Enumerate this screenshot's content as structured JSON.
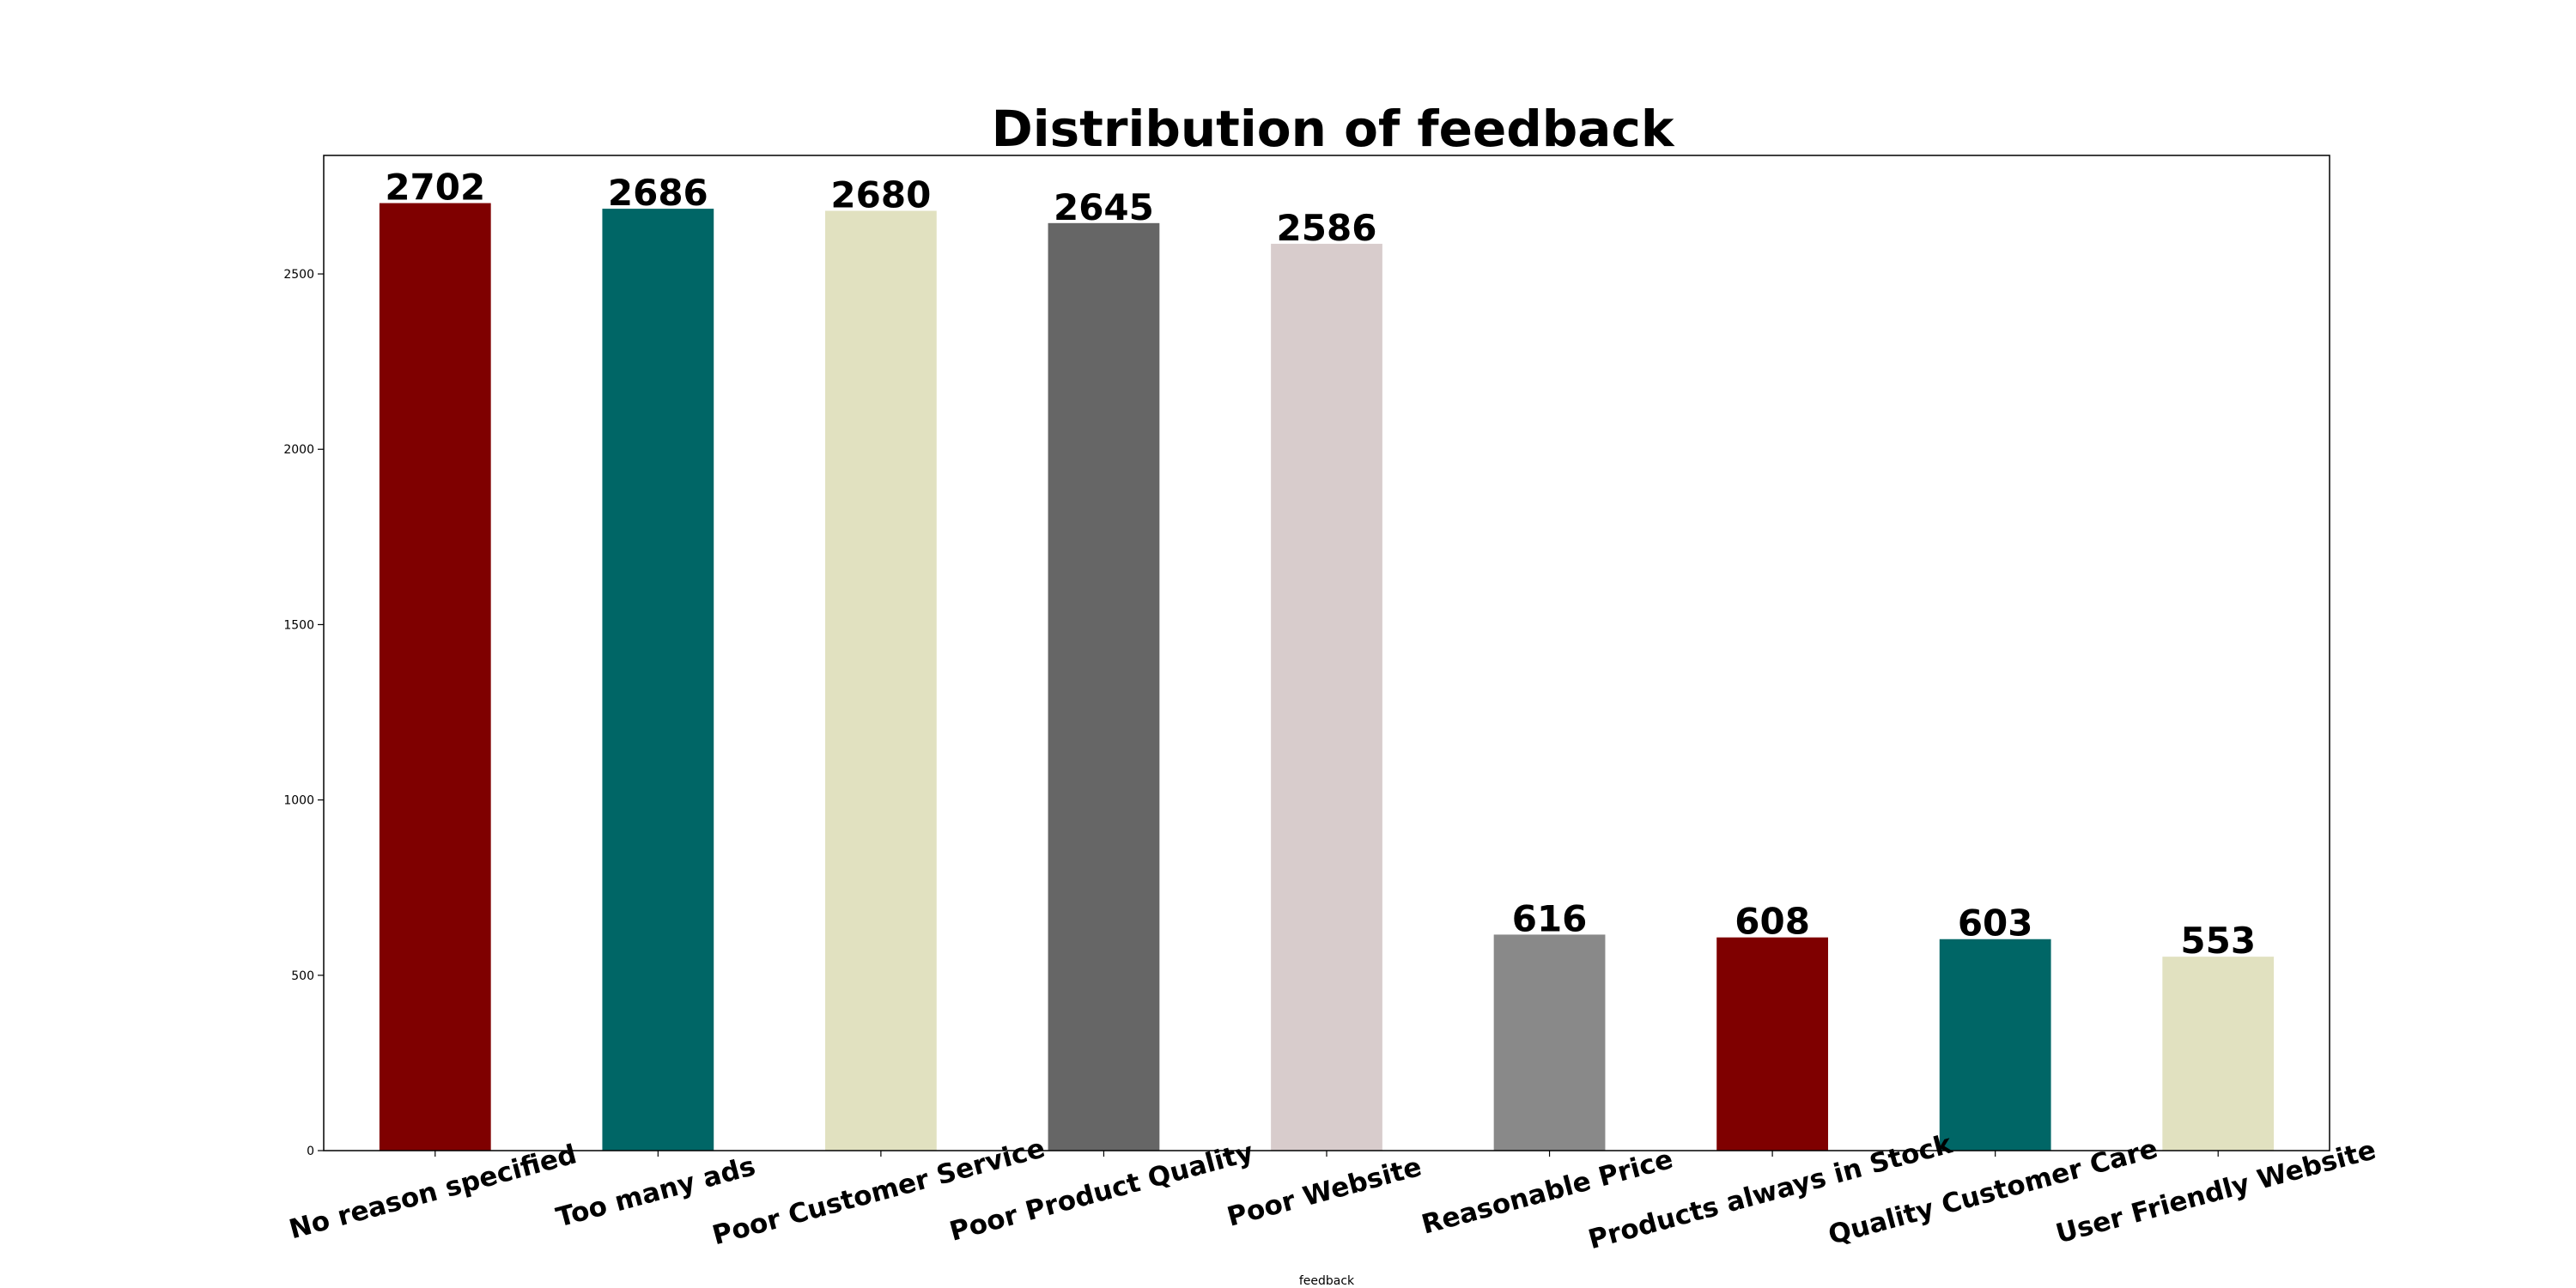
{
  "chart_data": {
    "type": "bar",
    "title": "Distribution of feedback",
    "xlabel": "feedback",
    "ylabel": "",
    "ylim": [
      0,
      2838
    ],
    "yticks": [
      0,
      500,
      1000,
      1500,
      2000,
      2500
    ],
    "grid": false,
    "legend": "none",
    "categories": [
      "No reason specified",
      "Too many ads",
      "Poor Customer Service",
      "Poor Product Quality",
      "Poor Website",
      "Reasonable Price",
      "Products always in Stock",
      "Quality Customer Care",
      "User Friendly Website"
    ],
    "values": [
      2702,
      2686,
      2680,
      2645,
      2586,
      616,
      608,
      603,
      553
    ],
    "colors": [
      "#7f0000",
      "#006666",
      "#e1e1c0",
      "#666666",
      "#d8cccc",
      "#898989",
      "#7f0000",
      "#006666",
      "#e1e1c0"
    ]
  }
}
